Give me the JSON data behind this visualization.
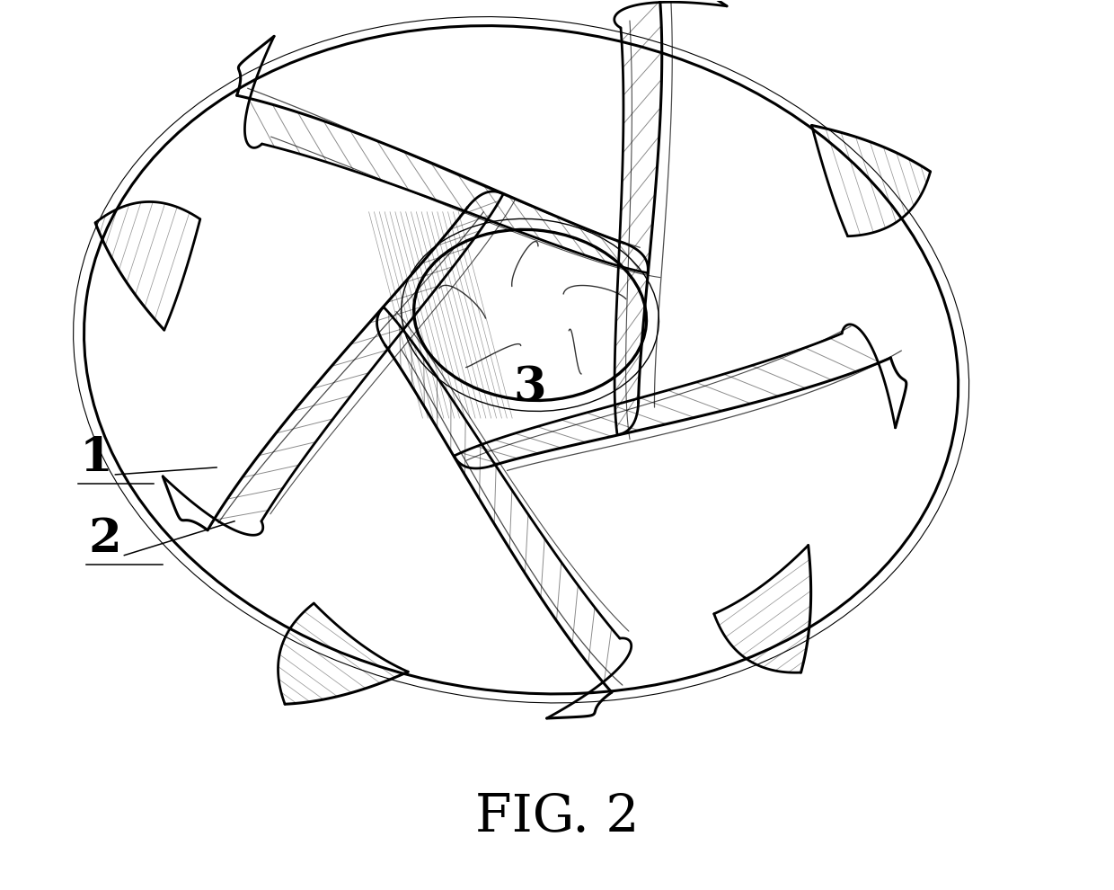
{
  "title": "FIG. 2",
  "title_fontsize": 42,
  "bg_color": "#ffffff",
  "line_color": "#000000",
  "label_1": "1",
  "label_2": "2",
  "label_3": "3",
  "fig_width": 12.4,
  "fig_height": 9.9
}
